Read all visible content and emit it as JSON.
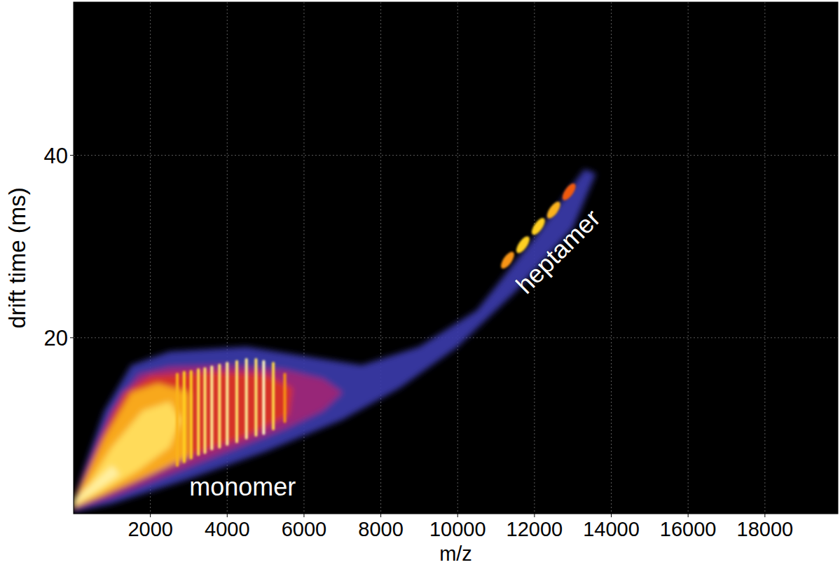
{
  "chart_data": {
    "type": "heatmap",
    "xlabel": "m/z",
    "ylabel": "drift time (ms)",
    "xlim": [
      0,
      19900
    ],
    "ylim": [
      0.7,
      56.8
    ],
    "xticks": [
      2000,
      4000,
      6000,
      8000,
      10000,
      12000,
      14000,
      16000,
      18000
    ],
    "yticks": [
      20,
      40
    ],
    "grid": true,
    "color_range": [
      0,
      1
    ],
    "regions": [
      {
        "level": 0.15,
        "x": [
          0,
          1000,
          3000,
          5000,
          7000,
          8500,
          10000,
          11500,
          13000,
          13600,
          13300,
          12000,
          10500,
          9000,
          7500,
          6000,
          4500,
          2500,
          1500,
          800,
          300,
          0
        ],
        "y": [
          0.9,
          1.8,
          4.5,
          7.5,
          11,
          14.5,
          19,
          25,
          32,
          38,
          38.5,
          31,
          23,
          19,
          17,
          18,
          19,
          18.5,
          17,
          12,
          6,
          2
        ]
      },
      {
        "level": 0.35,
        "x": [
          0,
          1000,
          2500,
          4000,
          5500,
          6500,
          7000,
          6500,
          5500,
          4000,
          2500,
          1700,
          1000,
          400,
          0
        ],
        "y": [
          1.2,
          2.5,
          5,
          7.5,
          10,
          12,
          14,
          15.5,
          16.5,
          17,
          16.8,
          16,
          12,
          6,
          2
        ]
      },
      {
        "level": 0.5,
        "x": [
          0,
          1500,
          3000,
          4500,
          5600,
          5700,
          5000,
          3500,
          2000,
          1300,
          700,
          200,
          0
        ],
        "y": [
          1.3,
          4,
          7,
          9.2,
          11.5,
          14.5,
          16,
          16.3,
          15.8,
          14,
          9,
          4,
          2
        ]
      },
      {
        "level": 0.75,
        "x": [
          0,
          800,
          2000,
          3000,
          3000,
          2200,
          1500,
          800,
          300,
          0
        ],
        "y": [
          1.4,
          2.8,
          5,
          7,
          14,
          15,
          14,
          9,
          4.5,
          2
        ]
      },
      {
        "level": 0.88,
        "x": [
          0,
          700,
          1700,
          2500,
          2800,
          2500,
          1800,
          1000,
          400,
          0
        ],
        "y": [
          1.5,
          3,
          5.5,
          8,
          11,
          13,
          12,
          8,
          4,
          2
        ]
      },
      {
        "level": 0.97,
        "x": [
          0,
          500,
          1200,
          1000,
          500,
          0
        ],
        "y": [
          1.6,
          3,
          5,
          6,
          4,
          2.2
        ]
      }
    ],
    "streaks": {
      "x": [
        2700,
        2880,
        3060,
        3250,
        3420,
        3600,
        3800,
        4000,
        4250,
        4500,
        4750,
        4950,
        5200,
        5500
      ],
      "y_low": [
        6.0,
        6.4,
        6.8,
        7.2,
        7.4,
        7.8,
        8.0,
        8.3,
        8.6,
        9.0,
        9.3,
        9.5,
        10.0,
        10.8
      ],
      "y_high": [
        16.0,
        16.2,
        16.3,
        16.5,
        16.6,
        16.8,
        17.0,
        17.2,
        17.4,
        17.6,
        17.6,
        17.4,
        17.2,
        16.0
      ],
      "intensity": [
        0.75,
        0.8,
        0.8,
        0.85,
        0.9,
        0.95,
        0.9,
        0.95,
        0.9,
        0.95,
        0.9,
        1.0,
        0.85,
        0.7
      ]
    },
    "peaks": {
      "x": [
        11300,
        11700,
        12100,
        12500,
        12900
      ],
      "y": [
        28.5,
        30.2,
        32.2,
        34.0,
        36.0
      ],
      "intensity": [
        0.7,
        0.8,
        0.8,
        0.75,
        0.6
      ]
    },
    "annotations": [
      {
        "text": "monomer",
        "x": 4400,
        "y": 3.4
      },
      {
        "text": "heptamer",
        "x": 12650,
        "y": 29.3
      }
    ]
  }
}
